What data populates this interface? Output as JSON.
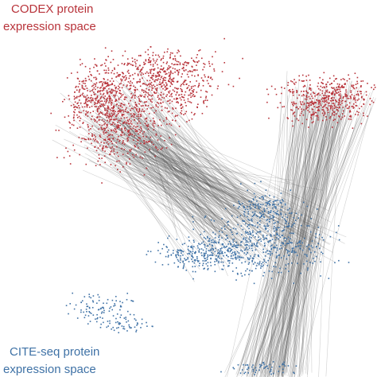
{
  "top_label": {
    "lines": [
      "CODEX protein",
      "expression space"
    ]
  },
  "bottom_label": {
    "lines": [
      "CITE-seq protein",
      "expression space"
    ]
  }
}
